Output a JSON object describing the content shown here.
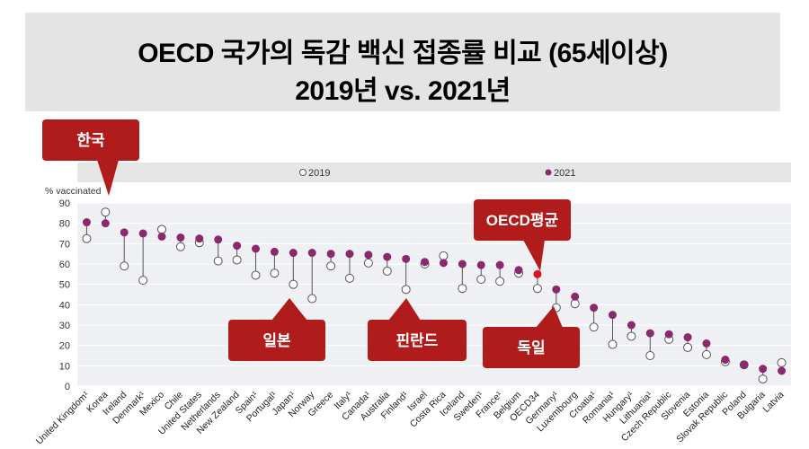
{
  "header": {
    "line1": "OECD 국가의 독감 백신 접종률 비교 (65세이상)",
    "line2": "2019년 vs. 2021년"
  },
  "callouts": {
    "korea": "한국",
    "oecd": "OECD평균",
    "japan": "일본",
    "finland": "핀란드",
    "germany": "독일"
  },
  "colors": {
    "accent": "#b01c1c",
    "s2019_fill": "#ffffff",
    "s2021_fill": "#8b2a6b",
    "oecd_2021": "#e01020",
    "band": "#e6e6e6",
    "plot_bg": "#eef0f4"
  },
  "chart_data": {
    "type": "scatter",
    "subtype": "dumbbell",
    "title": "OECD 국가의 독감 백신 접종률 비교 (65세이상)",
    "ylabel": "% vaccinated",
    "ylim": [
      0,
      90
    ],
    "yticks": [
      0,
      10,
      20,
      30,
      40,
      50,
      60,
      70,
      80,
      90
    ],
    "legend_position": "top",
    "categories": [
      "United Kingdom¹",
      "Korea",
      "Ireland",
      "Denmark¹",
      "Mexico",
      "Chile",
      "United States",
      "Netherlands",
      "New Zealand",
      "Spain¹",
      "Portugal¹",
      "Japan¹",
      "Norway",
      "Greece",
      "Italy¹",
      "Canada¹",
      "Australia",
      "Finland¹",
      "Israel",
      "Costa Rica",
      "Iceland",
      "Sweden¹",
      "France¹",
      "Belgium",
      "OECD34",
      "Germany¹",
      "Luxembourg",
      "Croatia¹",
      "Romania¹",
      "Hungary¹",
      "Lithuania¹",
      "Czech Republic",
      "Slovenia",
      "Estonia",
      "Slovak Republic",
      "Poland",
      "Bulgaria",
      "Latvia"
    ],
    "series": [
      {
        "name": "2019",
        "values": [
          72.5,
          85.5,
          59,
          52,
          77,
          68.5,
          70.5,
          61.5,
          62,
          54.5,
          55.5,
          50,
          43,
          59,
          53,
          60.5,
          56.5,
          47.5,
          60,
          64,
          48,
          52.5,
          51.5,
          55.5,
          48,
          38.5,
          40.5,
          29,
          20.5,
          24.5,
          15,
          23,
          19,
          15.5,
          12,
          10.5,
          3.5,
          11.5
        ]
      },
      {
        "name": "2021",
        "values": [
          80.5,
          80,
          75.5,
          75,
          73.5,
          73,
          72.5,
          72,
          69,
          67.5,
          66,
          65.5,
          65.5,
          65,
          65,
          64.5,
          63.5,
          62.5,
          61,
          60.5,
          60,
          59.5,
          59.5,
          57,
          55,
          47.5,
          44,
          38.5,
          35,
          30,
          26,
          25.5,
          24,
          21,
          13,
          10.5,
          8.5,
          7.5
        ]
      }
    ],
    "highlight": "OECD34"
  }
}
